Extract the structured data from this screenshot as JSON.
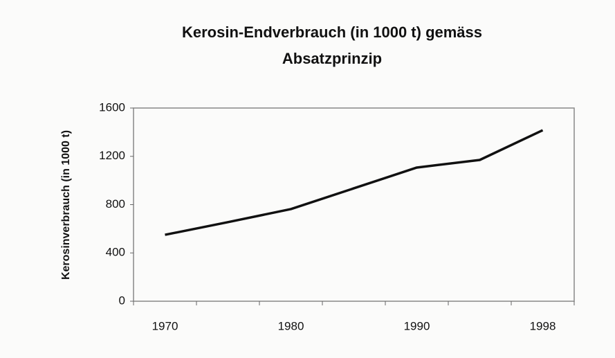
{
  "chart_data": {
    "type": "line",
    "title": "Kerosin-Endverbrauch (in 1000 t) gemäss Absatzprinzip",
    "y_label": "Kerosinverbrauch (in 1000 t)",
    "categories": [
      "1970",
      null,
      "1980",
      null,
      "1990",
      null,
      "1998"
    ],
    "series": [
      {
        "name": "Kerosin-Endverbrauch",
        "color": "#111111",
        "values": [
          550,
          655,
          763,
          935,
          1107,
          1170,
          1416
        ]
      }
    ],
    "ylim": [
      0,
      1600
    ],
    "yticks": [
      0,
      400,
      800,
      1200,
      1600
    ],
    "grid": false
  }
}
